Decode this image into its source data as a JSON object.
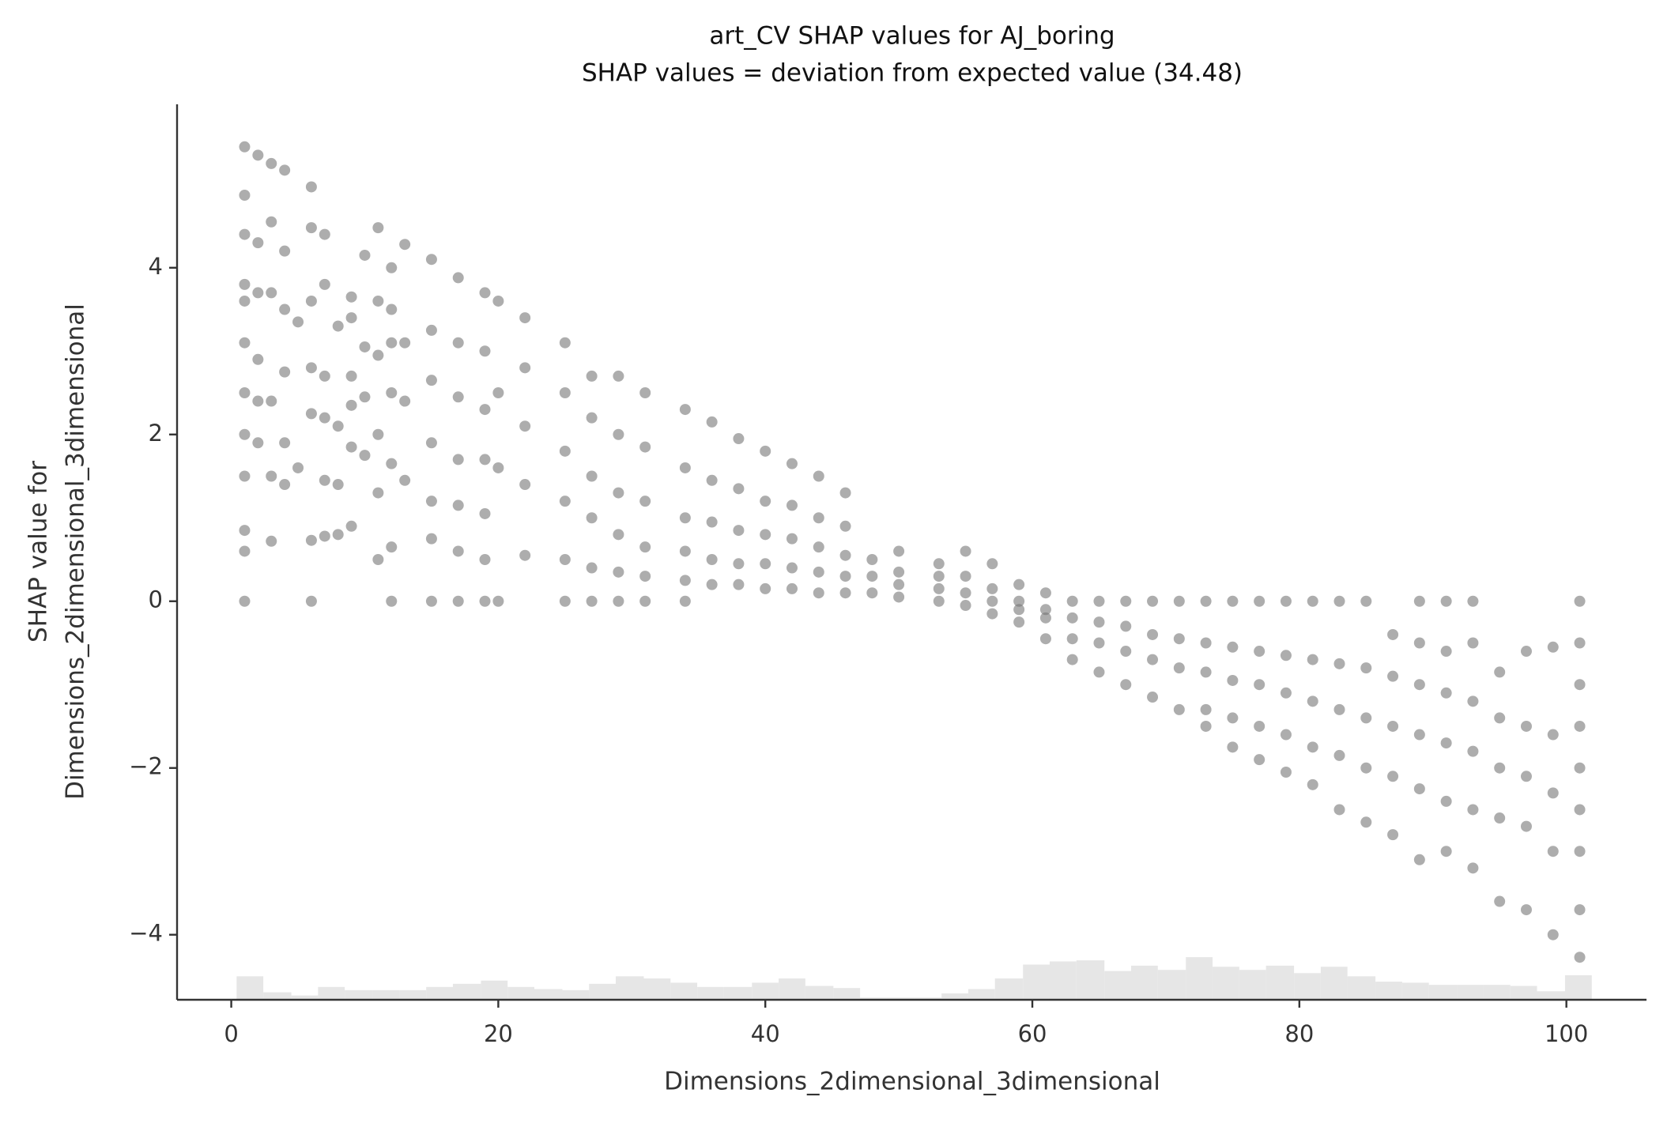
{
  "chart_data": {
    "type": "scatter",
    "title": [
      "art_CV SHAP values for AJ_boring",
      "SHAP values = deviation from expected value (34.48)"
    ],
    "x_label": "Dimensions_2dimensional_3dimensional",
    "y_label": [
      "SHAP value for",
      "Dimensions_2dimensional_3dimensional"
    ],
    "color": "#777777",
    "xlim": [
      -4.06,
      106.0
    ],
    "ylim": [
      -4.78,
      5.96
    ],
    "xticks": [
      0,
      20,
      40,
      60,
      80,
      100
    ],
    "yticks": [
      {
        "value": -4,
        "label": "−4"
      },
      {
        "value": -2,
        "label": "−2"
      },
      0,
      2,
      4
    ],
    "x": [
      1,
      1,
      1,
      1,
      1,
      1,
      1,
      1,
      1,
      1,
      1,
      1,
      2,
      2,
      2,
      2,
      2,
      2,
      3,
      3,
      3,
      3,
      3,
      3,
      4,
      4,
      4,
      4,
      4,
      4,
      5,
      5,
      6,
      6,
      6,
      6,
      6,
      6,
      6,
      7,
      7,
      7,
      7,
      7,
      7,
      8,
      8,
      8,
      8,
      9,
      9,
      9,
      9,
      9,
      9,
      10,
      10,
      10,
      10,
      11,
      11,
      11,
      11,
      11,
      11,
      12,
      12,
      12,
      12,
      12,
      12,
      12,
      13,
      13,
      13,
      13,
      15,
      15,
      15,
      15,
      15,
      15,
      15,
      17,
      17,
      17,
      17,
      17,
      17,
      17,
      19,
      19,
      19,
      19,
      19,
      19,
      19,
      20,
      20,
      20,
      20,
      22,
      22,
      22,
      22,
      22,
      25,
      25,
      25,
      25,
      25,
      25,
      27,
      27,
      27,
      27,
      27,
      27,
      29,
      29,
      29,
      29,
      29,
      29,
      31,
      31,
      31,
      31,
      31,
      31,
      34,
      34,
      34,
      34,
      34,
      34,
      36,
      36,
      36,
      36,
      36,
      38,
      38,
      38,
      38,
      38,
      40,
      40,
      40,
      40,
      40,
      42,
      42,
      42,
      42,
      42,
      44,
      44,
      44,
      44,
      44,
      46,
      46,
      46,
      46,
      46,
      48,
      48,
      48,
      50,
      50,
      50,
      50,
      53,
      53,
      53,
      53,
      55,
      55,
      55,
      55,
      57,
      57,
      57,
      57,
      59,
      59,
      59,
      59,
      61,
      61,
      61,
      61,
      63,
      63,
      63,
      63,
      65,
      65,
      65,
      65,
      67,
      67,
      67,
      67,
      69,
      69,
      69,
      69,
      71,
      71,
      71,
      71,
      73,
      73,
      73,
      73,
      73,
      75,
      75,
      75,
      75,
      75,
      77,
      77,
      77,
      77,
      77,
      79,
      79,
      79,
      79,
      79,
      81,
      81,
      81,
      81,
      81,
      83,
      83,
      83,
      83,
      83,
      85,
      85,
      85,
      85,
      85,
      87,
      87,
      87,
      87,
      87,
      89,
      89,
      89,
      89,
      89,
      89,
      91,
      91,
      91,
      91,
      91,
      91,
      93,
      93,
      93,
      93,
      93,
      93,
      95,
      95,
      95,
      95,
      95,
      97,
      97,
      97,
      97,
      97,
      99,
      99,
      99,
      99,
      99,
      101,
      101,
      101,
      101,
      101,
      101,
      101,
      101,
      101
    ],
    "values": [
      5.45,
      4.87,
      4.4,
      3.8,
      3.6,
      3.1,
      2.5,
      2.0,
      1.5,
      0.85,
      0.6,
      0,
      5.35,
      4.3,
      3.7,
      2.9,
      2.4,
      1.9,
      5.25,
      4.55,
      3.7,
      2.4,
      1.5,
      0.72,
      5.17,
      4.2,
      3.5,
      2.75,
      1.9,
      1.4,
      3.35,
      1.6,
      4.97,
      4.48,
      3.6,
      2.8,
      2.25,
      0.73,
      0,
      4.4,
      3.8,
      2.7,
      2.2,
      1.45,
      0.78,
      3.3,
      2.1,
      1.4,
      0.8,
      3.65,
      3.4,
      2.7,
      2.35,
      1.85,
      0.9,
      4.15,
      3.05,
      2.45,
      1.75,
      4.48,
      3.6,
      2.95,
      2.0,
      1.3,
      0.5,
      4.0,
      3.5,
      3.1,
      2.5,
      1.65,
      0.65,
      0,
      4.28,
      3.1,
      2.4,
      1.45,
      4.1,
      3.25,
      2.65,
      1.9,
      1.2,
      0.75,
      0,
      3.88,
      3.1,
      2.45,
      1.7,
      1.15,
      0.6,
      0,
      3.7,
      3.0,
      2.3,
      1.7,
      1.05,
      0.5,
      0,
      3.6,
      2.5,
      1.6,
      0,
      3.4,
      2.8,
      2.1,
      1.4,
      0.55,
      3.1,
      2.5,
      1.8,
      1.2,
      0.5,
      0,
      2.7,
      2.2,
      1.5,
      1.0,
      0.4,
      0,
      2.7,
      2.0,
      1.3,
      0.8,
      0.35,
      0,
      2.5,
      1.85,
      1.2,
      0.65,
      0.3,
      0,
      2.3,
      1.6,
      1.0,
      0.6,
      0.25,
      0,
      2.15,
      1.45,
      0.95,
      0.5,
      0.2,
      1.95,
      1.35,
      0.85,
      0.45,
      0.2,
      1.8,
      1.2,
      0.8,
      0.45,
      0.15,
      1.65,
      1.15,
      0.75,
      0.4,
      0.15,
      1.5,
      1.0,
      0.65,
      0.35,
      0.1,
      1.3,
      0.9,
      0.55,
      0.3,
      0.1,
      0.5,
      0.3,
      0.1,
      0.6,
      0.35,
      0.2,
      0.05,
      0.45,
      0.3,
      0.15,
      0,
      0.6,
      0.3,
      0.1,
      -0.05,
      0.45,
      0.15,
      0,
      -0.15,
      0.2,
      0,
      -0.1,
      -0.25,
      0.1,
      -0.1,
      -0.2,
      -0.45,
      0,
      -0.2,
      -0.45,
      -0.7,
      0,
      -0.25,
      -0.5,
      -0.85,
      0,
      -0.3,
      -0.6,
      -1.0,
      0,
      -0.4,
      -0.7,
      -1.15,
      0,
      -0.45,
      -0.8,
      -1.3,
      0,
      -0.5,
      -0.85,
      -1.3,
      -1.5,
      0,
      -0.55,
      -0.95,
      -1.4,
      -1.75,
      0,
      -0.6,
      -1.0,
      -1.5,
      -1.9,
      0,
      -0.65,
      -1.1,
      -1.6,
      -2.05,
      0,
      -0.7,
      -1.2,
      -1.75,
      -2.2,
      0,
      -0.75,
      -1.3,
      -1.85,
      -2.5,
      0,
      -0.8,
      -1.4,
      -2.0,
      -2.65,
      -0.4,
      -0.9,
      -1.5,
      -2.1,
      -2.8,
      0,
      -0.5,
      -1.0,
      -1.6,
      -2.25,
      -3.1,
      0,
      -0.6,
      -1.1,
      -1.7,
      -2.4,
      -3.0,
      0,
      -0.5,
      -1.2,
      -1.8,
      -2.5,
      -3.2,
      -0.85,
      -1.4,
      -2.0,
      -2.6,
      -3.6,
      -0.6,
      -1.5,
      -2.1,
      -2.7,
      -3.7,
      -0.55,
      -1.6,
      -2.3,
      -3.0,
      -4.0,
      0,
      -0.5,
      -1.0,
      -1.5,
      -2.0,
      -2.5,
      -3.0,
      -3.7,
      -4.27
    ],
    "histogram": {
      "color": "#e6e6e6",
      "bins": [
        0.4,
        2.4,
        4.5,
        6.5,
        8.5,
        10.6,
        12.6,
        14.6,
        16.6,
        18.7,
        20.7,
        22.7,
        24.8,
        26.8,
        28.8,
        30.9,
        32.9,
        34.9,
        36.9,
        39.0,
        41.0,
        43.0,
        45.1,
        47.1,
        49.1,
        51.2,
        53.2,
        55.2,
        57.2,
        59.3,
        61.3,
        63.3,
        65.4,
        67.4,
        69.4,
        71.5,
        73.5,
        75.5,
        77.5,
        79.6,
        81.6,
        83.6,
        85.7,
        87.7,
        89.7,
        91.8,
        93.8,
        95.8,
        97.8,
        99.9,
        101.9
      ],
      "counts": [
        22,
        7,
        4,
        12,
        9,
        9,
        9,
        12,
        15,
        18,
        12,
        10,
        9,
        15,
        22,
        20,
        16,
        12,
        12,
        16,
        20,
        13,
        11,
        2,
        2,
        2,
        6,
        10,
        20,
        33,
        36,
        37,
        27,
        32,
        28,
        40,
        31,
        28,
        32,
        25,
        31,
        22,
        17,
        16,
        14,
        14,
        14,
        13,
        8,
        23
      ]
    }
  }
}
